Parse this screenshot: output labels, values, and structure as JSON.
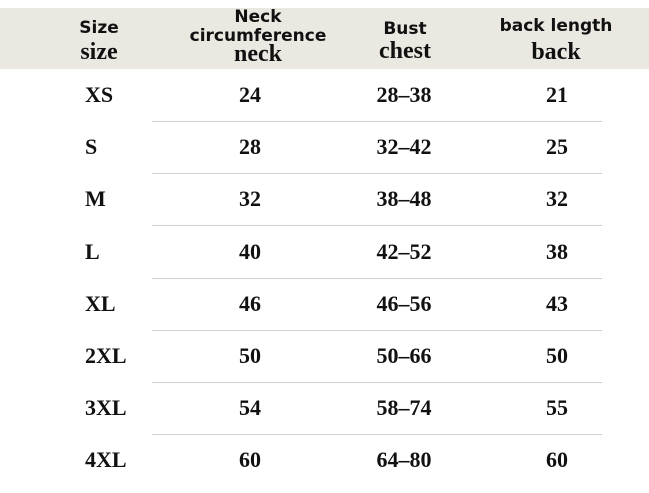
{
  "table": {
    "header": [
      {
        "label": "Size",
        "sublabel": "size"
      },
      {
        "label": "Neck circumference",
        "sublabel": "neck"
      },
      {
        "label": "Bust",
        "sublabel": "chest"
      },
      {
        "label": "back length",
        "sublabel": "back"
      }
    ],
    "rows": [
      [
        "XS",
        "24",
        "28–38",
        "21"
      ],
      [
        "S",
        "28",
        "32–42",
        "25"
      ],
      [
        "M",
        "32",
        "38–48",
        "32"
      ],
      [
        "L",
        "40",
        "42–52",
        "38"
      ],
      [
        "XL",
        "46",
        "46–56",
        "43"
      ],
      [
        "2XL",
        "50",
        "50–66",
        "50"
      ],
      [
        "3XL",
        "54",
        "58–74",
        "55"
      ],
      [
        "4XL",
        "60",
        "64–80",
        "60"
      ]
    ]
  }
}
